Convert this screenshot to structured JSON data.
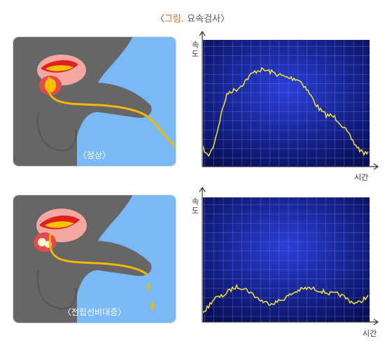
{
  "title": {
    "open": "〈",
    "label": "그림.",
    "text": "요속검사",
    "close": "〉"
  },
  "panels": [
    {
      "caption": "〈정상〉",
      "graph": {
        "y_label": "속도",
        "x_label": "시간"
      }
    },
    {
      "caption": "〈전립선비대증〉",
      "graph": {
        "y_label": "속도",
        "x_label": "시간"
      }
    }
  ]
}
